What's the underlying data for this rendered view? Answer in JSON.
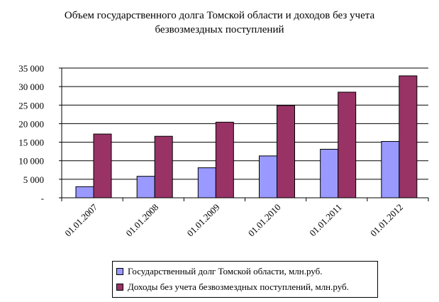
{
  "chart_data": {
    "type": "bar",
    "title_lines": [
      "Объем государственного долга Томской области и доходов без учета",
      "безвозмездных поступлений"
    ],
    "categories": [
      "01.01.2007",
      "01.01.2008",
      "01.01.2009",
      "01.01.2010",
      "01.01.2011",
      "01.01.2012"
    ],
    "series": [
      {
        "name": "Государственный долг Томской области,  млн.руб.",
        "values": [
          3000,
          5800,
          8100,
          11300,
          13100,
          15200
        ],
        "color": "#9999FF"
      },
      {
        "name": "Доходы без учета безвозмездных поступлений, млн.руб.",
        "values": [
          17200,
          16600,
          20400,
          24900,
          28500,
          32900
        ],
        "color": "#993366"
      }
    ],
    "ylim": [
      0,
      35000
    ],
    "yticks": [
      0,
      5000,
      10000,
      15000,
      20000,
      25000,
      30000,
      35000
    ],
    "ytick_labels": [
      "-",
      "5 000",
      "10 000",
      "15 000",
      "20 000",
      "25 000",
      "30 000",
      "35 000"
    ],
    "grid": true,
    "legend_position": "bottom"
  }
}
